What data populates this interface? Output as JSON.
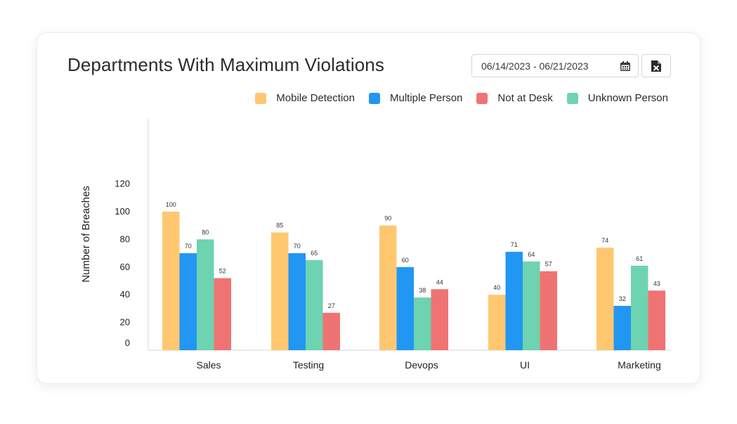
{
  "header": {
    "title": "Departments With Maximum Violations",
    "date_range": "06/14/2023 - 06/21/2023",
    "calendar_icon": "calendar-icon",
    "export_icon": "excel-file-icon"
  },
  "chart_data": {
    "type": "bar",
    "title": "Departments With Maximum Violations",
    "xlabel": "",
    "ylabel": "Number of Breaches",
    "categories": [
      "Sales",
      "Testing",
      "Devops",
      "UI",
      "Marketing"
    ],
    "y_ticks": [
      "0",
      "20",
      "40",
      "60",
      "80",
      "100",
      "120"
    ],
    "ylim": [
      0,
      130
    ],
    "grid": false,
    "legend_position": "top-right",
    "legend": [
      "Mobile Detection",
      "Multiple Person",
      "Not at Desk",
      "Unknown Person"
    ],
    "bar_order": [
      "Mobile Detection",
      "Multiple Person",
      "Unknown Person",
      "Not at Desk"
    ],
    "series": [
      {
        "name": "Mobile Detection",
        "color": "#FFC870",
        "values": [
          100,
          85,
          90,
          40,
          74
        ]
      },
      {
        "name": "Multiple Person",
        "color": "#2196F3",
        "values": [
          70,
          70,
          60,
          71,
          32
        ]
      },
      {
        "name": "Not at Desk",
        "color": "#F07373",
        "values": [
          52,
          27,
          44,
          57,
          43
        ]
      },
      {
        "name": "Unknown Person",
        "color": "#6DD3B0",
        "values": [
          80,
          65,
          38,
          64,
          61
        ]
      }
    ]
  }
}
